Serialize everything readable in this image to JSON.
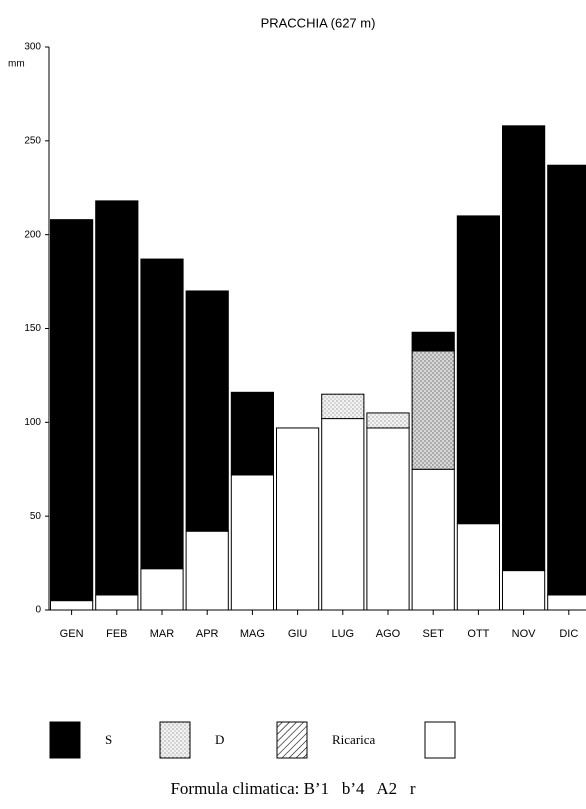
{
  "chart_data": {
    "type": "stacked_bar",
    "title": "PRACCHIA (627 m)",
    "y_unit": "mm",
    "categories": [
      "GEN",
      "FEB",
      "MAR",
      "APR",
      "MAG",
      "GIU",
      "LUG",
      "AGO",
      "SET",
      "OTT",
      "NOV",
      "DIC"
    ],
    "series": [
      {
        "color": "#ffffff",
        "values": [
          5,
          8,
          22,
          42,
          72,
          97,
          102,
          97,
          75,
          46,
          21,
          8
        ]
      },
      {
        "name": "D",
        "color": "#e6e6e6",
        "pattern": "dots",
        "values": [
          0,
          0,
          0,
          0,
          0,
          0,
          13,
          8,
          0,
          0,
          0,
          0
        ]
      },
      {
        "name": "Ricarica",
        "color": "#c8c8c8",
        "pattern": "hatch",
        "values": [
          0,
          0,
          0,
          0,
          0,
          0,
          0,
          0,
          63,
          0,
          0,
          0
        ]
      },
      {
        "name": "S",
        "color": "#000000",
        "values": [
          203,
          210,
          165,
          128,
          44,
          0,
          0,
          0,
          10,
          164,
          237,
          229
        ]
      }
    ],
    "legend_order": [
      3,
      1,
      2,
      0
    ],
    "ylim": [
      0,
      300
    ],
    "yticks": [
      0,
      50,
      100,
      150,
      200,
      250,
      300
    ],
    "footer": "Formula climatica: B’1   b’4   A2   r"
  }
}
